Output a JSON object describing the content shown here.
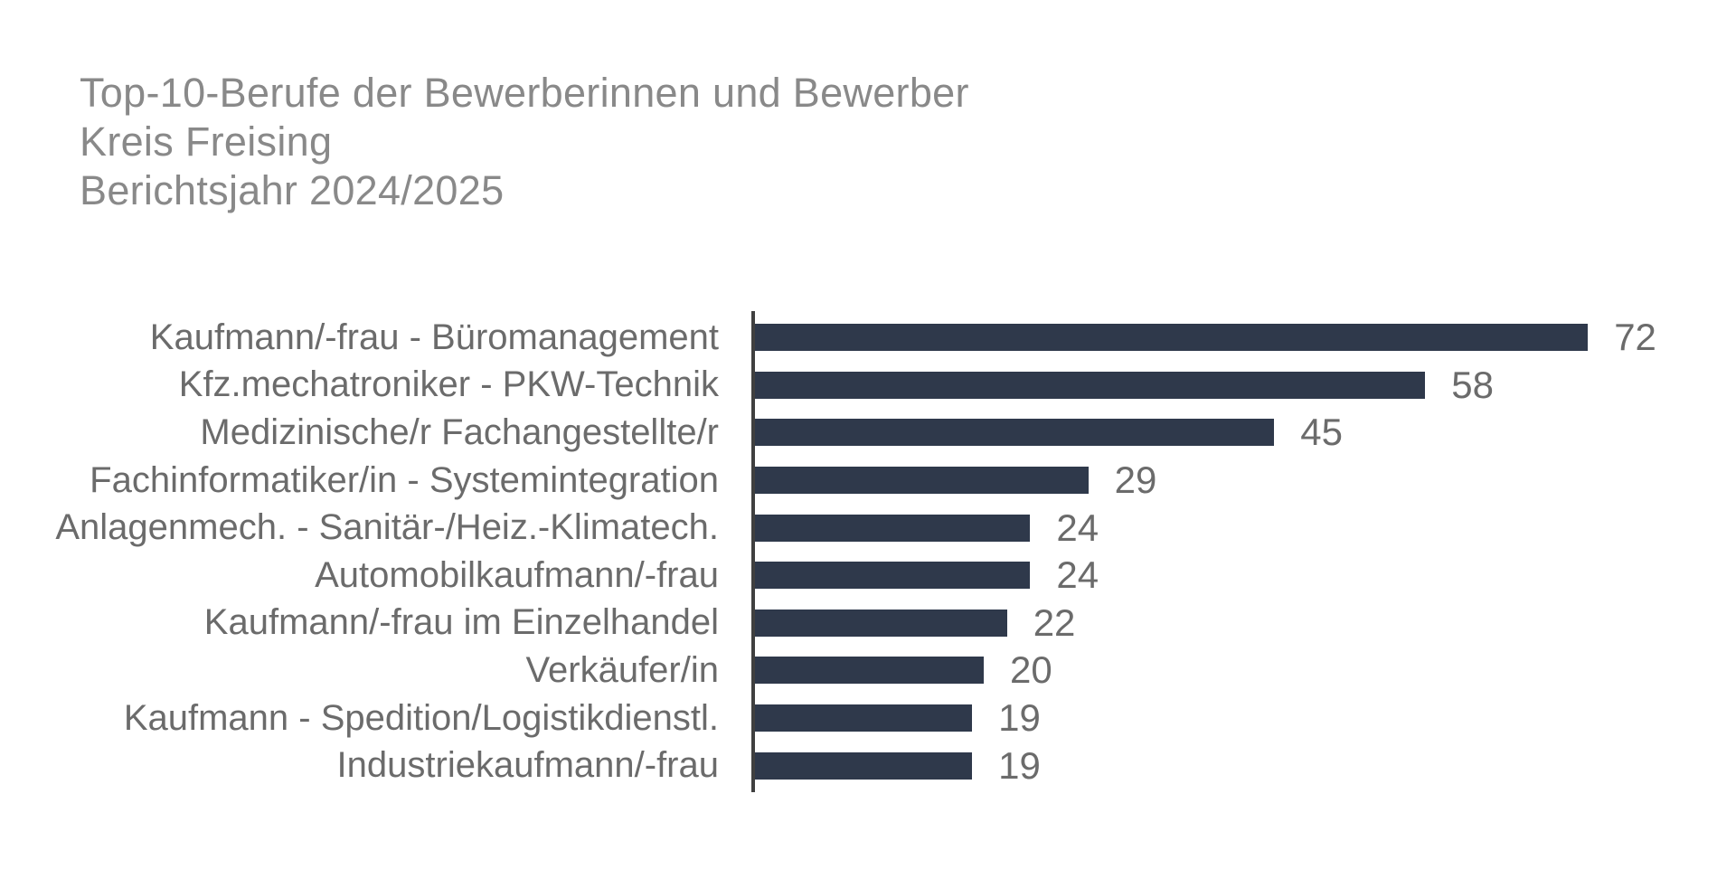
{
  "title": {
    "line1": "Top-10-Berufe der Bewerberinnen und Bewerber",
    "line2": "Kreis Freising",
    "line3": "Berichtsjahr 2024/2025"
  },
  "chart_data": {
    "type": "bar",
    "orientation": "horizontal",
    "title": "Top-10-Berufe der Bewerberinnen und Bewerber",
    "subtitle": "Kreis Freising",
    "subtitle2": "Berichtsjahr 2024/2025",
    "categories": [
      "Kaufmann/-frau - Büromanagement",
      "Kfz.mechatroniker - PKW-Technik",
      "Medizinische/r Fachangestellte/r",
      "Fachinformatiker/in - Systemintegration",
      "Anlagenmech. - Sanitär-/Heiz.-Klimatech.",
      "Automobilkaufmann/-frau",
      "Kaufmann/-frau im Einzelhandel",
      "Verkäufer/in",
      "Kaufmann - Spedition/Logistikdienstl.",
      "Industriekaufmann/-frau"
    ],
    "values": [
      72,
      58,
      45,
      29,
      24,
      24,
      22,
      20,
      19,
      19
    ],
    "xlabel": "",
    "ylabel": "",
    "xlim": [
      0,
      85
    ],
    "grid": false,
    "legend": false,
    "data_labels": true,
    "colors": {
      "bar": "#2F394B",
      "axis_line": "#404040",
      "category_label": "#6B6B6B",
      "value_label": "#6B6B6B",
      "title": "#898989",
      "background": "#FFFFFF"
    }
  }
}
